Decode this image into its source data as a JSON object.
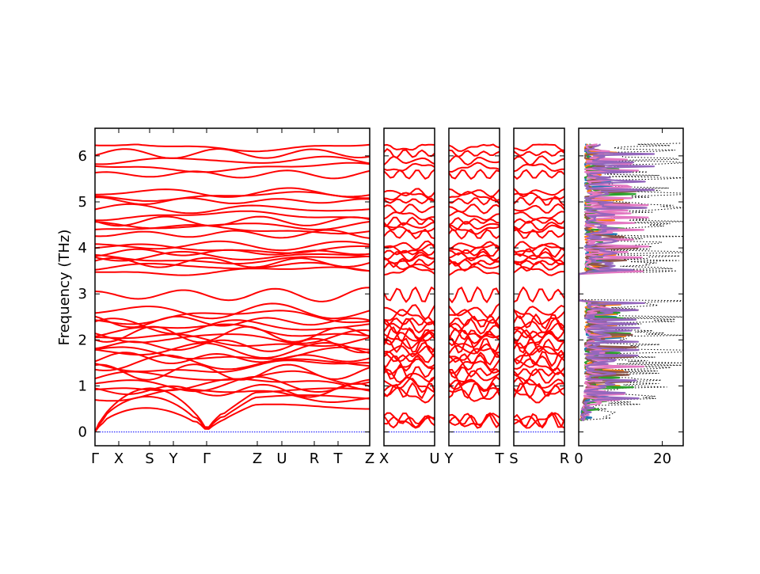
{
  "chart_data": {
    "type": "line",
    "ylabel": "Frequency (THz)",
    "ylim": [
      -0.3,
      6.6
    ],
    "yticks": [
      0,
      1,
      2,
      3,
      4,
      5,
      6
    ],
    "grid": false,
    "panels": [
      {
        "kind": "band-structure",
        "k_labels": [
          "Γ",
          "X",
          "S",
          "Y",
          "Γ",
          "Z",
          "U",
          "R",
          "T",
          "Z"
        ],
        "band_starts": [
          0.0,
          0.0,
          0.0,
          0.55,
          0.78,
          0.9,
          1.02,
          1.2,
          1.3,
          1.42,
          1.5,
          1.6,
          1.7,
          1.78,
          1.88,
          1.98,
          2.05,
          2.12,
          2.2,
          2.3,
          2.4,
          2.5,
          2.62,
          2.98,
          3.5,
          3.6,
          3.68,
          3.75,
          3.82,
          3.9,
          3.98,
          4.05,
          4.3,
          4.4,
          4.48,
          4.58,
          4.7,
          4.85,
          5.02,
          5.12,
          5.2,
          5.6,
          5.75,
          5.9,
          6.05,
          6.2
        ]
      },
      {
        "kind": "band-structure",
        "k_labels": [
          "X",
          "U"
        ]
      },
      {
        "kind": "band-structure",
        "k_labels": [
          "Y",
          "T"
        ]
      },
      {
        "kind": "band-structure",
        "k_labels": [
          "S",
          "R"
        ]
      },
      {
        "kind": "density-of-states",
        "xticks": [
          0,
          20
        ],
        "xlim": [
          0,
          25
        ],
        "partial_colors": [
          "#1f77b4",
          "#ff7f0e",
          "#2ca02c",
          "#8c564b",
          "#e377c2",
          "#9467bd"
        ]
      }
    ]
  }
}
